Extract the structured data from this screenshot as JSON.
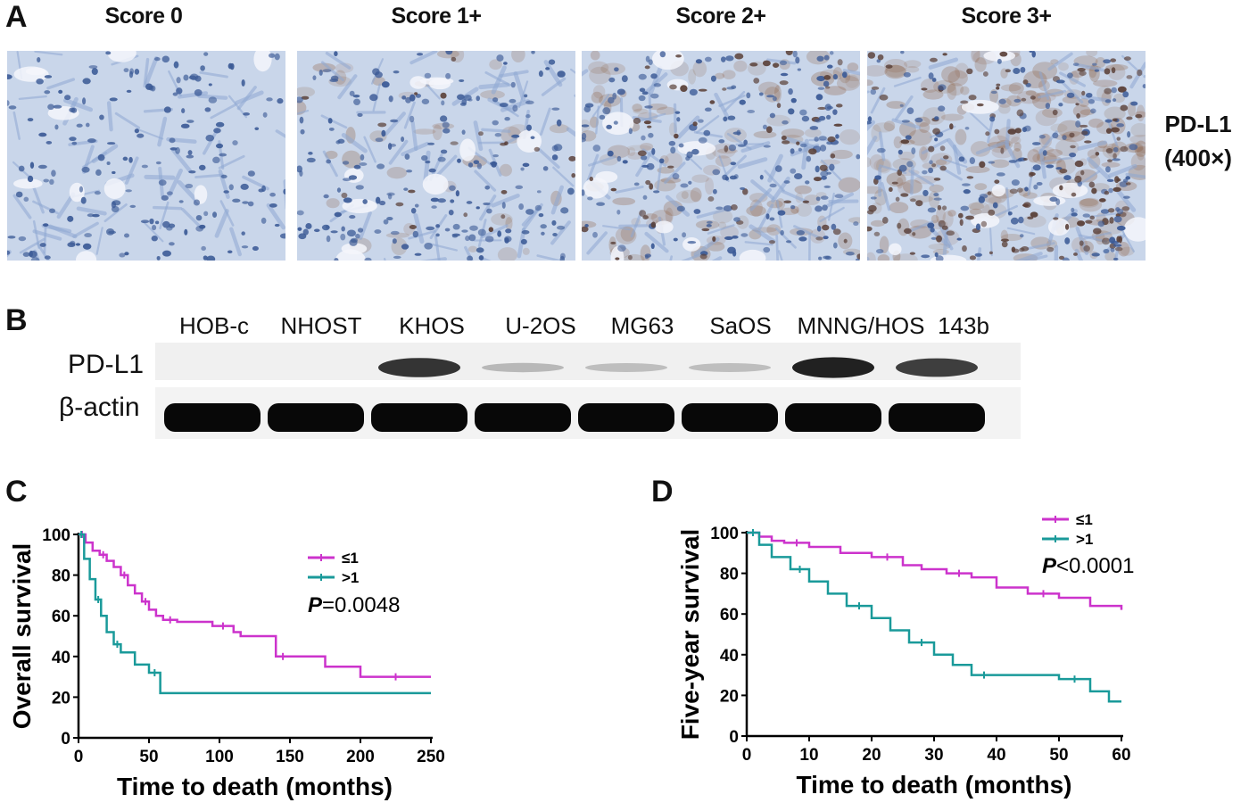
{
  "panels": {
    "a": "A",
    "b": "B",
    "c": "C",
    "d": "D"
  },
  "panel_a": {
    "scores": [
      {
        "label": "Score 0",
        "stain": 0.0
      },
      {
        "label": "Score 1+",
        "stain": 0.15
      },
      {
        "label": "Score 2+",
        "stain": 0.45
      },
      {
        "label": "Score 3+",
        "stain": 0.8
      }
    ],
    "stain_label_line1": "PD-L1",
    "stain_label_line2": "(400×)",
    "colors": {
      "tissue_bg": "#c9d6ea",
      "nucleus": "#3b5a96",
      "brown_stain": "#8a5a3a"
    }
  },
  "panel_b": {
    "lanes": [
      "HOB-c",
      "NHOST",
      "KHOS",
      "U-2OS",
      "MG63",
      "SaOS",
      "MNNG/HOS",
      "143b"
    ],
    "rows": [
      {
        "label": "PD-L1",
        "intensity": [
          0.0,
          0.0,
          0.85,
          0.15,
          0.12,
          0.12,
          0.95,
          0.8
        ]
      },
      {
        "label": "β-actin",
        "intensity": [
          1,
          1,
          1,
          1,
          1,
          1,
          1,
          1
        ]
      }
    ]
  },
  "chart_data": [
    {
      "type": "line",
      "xlabel": "Time to death (months)",
      "ylabel": "Overall survival",
      "xlim": [
        0,
        250
      ],
      "ylim": [
        0,
        100
      ],
      "xticks": [
        0,
        50,
        100,
        150,
        200,
        250
      ],
      "yticks": [
        0,
        20,
        40,
        60,
        80,
        100
      ],
      "annotation_p": "P",
      "annotation_value": "=0.0048",
      "legend_position": "top-right",
      "series": [
        {
          "name": "≤1",
          "color": "#cc33cc",
          "x": [
            0,
            5,
            10,
            15,
            20,
            25,
            30,
            35,
            40,
            45,
            50,
            55,
            60,
            70,
            80,
            95,
            110,
            115,
            140,
            150,
            175,
            200,
            250
          ],
          "y": [
            100,
            96,
            92,
            90,
            87,
            84,
            80,
            75,
            71,
            67,
            63,
            60,
            58,
            57,
            57,
            55,
            52,
            50,
            40,
            40,
            35,
            30,
            30
          ]
        },
        {
          "name": ">1",
          "color": "#1a9a9a",
          "x": [
            0,
            4,
            8,
            12,
            16,
            20,
            25,
            30,
            40,
            50,
            58,
            250
          ],
          "y": [
            100,
            88,
            78,
            68,
            60,
            52,
            46,
            42,
            36,
            32,
            22,
            22
          ]
        }
      ]
    },
    {
      "type": "line",
      "xlabel": "Time to death (months)",
      "ylabel": "Five-year survival",
      "xlim": [
        0,
        60
      ],
      "ylim": [
        0,
        100
      ],
      "xticks": [
        0,
        10,
        20,
        30,
        40,
        50,
        60
      ],
      "yticks": [
        0,
        20,
        40,
        60,
        80,
        100
      ],
      "annotation_p": "P",
      "annotation_value": "<0.0001",
      "legend_position": "top-right",
      "series": [
        {
          "name": "≤1",
          "color": "#cc33cc",
          "x": [
            0,
            2,
            4,
            6,
            10,
            15,
            20,
            25,
            28,
            32,
            36,
            40,
            45,
            50,
            55,
            60
          ],
          "y": [
            100,
            98,
            96,
            95,
            93,
            90,
            88,
            84,
            82,
            80,
            78,
            73,
            70,
            68,
            64,
            62
          ]
        },
        {
          "name": ">1",
          "color": "#1a9a9a",
          "x": [
            0,
            2,
            4,
            7,
            10,
            13,
            16,
            20,
            23,
            26,
            30,
            33,
            36,
            40,
            45,
            50,
            55,
            58,
            60
          ],
          "y": [
            100,
            94,
            88,
            82,
            76,
            70,
            64,
            58,
            52,
            46,
            40,
            35,
            30,
            30,
            30,
            28,
            22,
            17,
            17
          ]
        }
      ]
    }
  ]
}
